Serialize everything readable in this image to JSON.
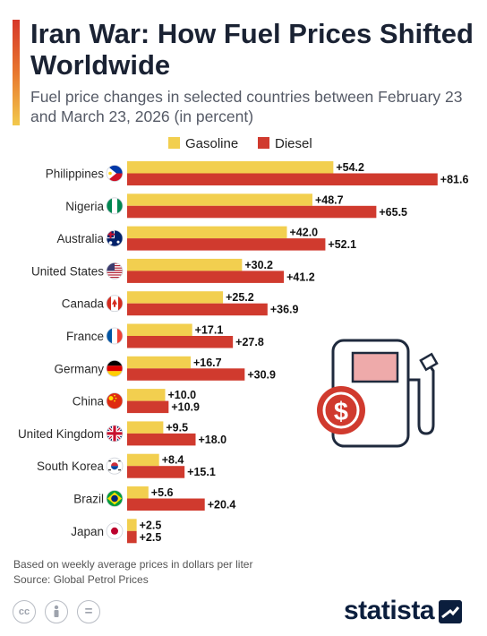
{
  "header": {
    "title": "Iran War: How Fuel Prices Shifted Worldwide",
    "subtitle": "Fuel price changes in selected countries between February 23 and March 23, 2026 (in percent)"
  },
  "colors": {
    "gasoline": "#f2cf4f",
    "diesel": "#d03a2e",
    "title": "#1a2233"
  },
  "chart_data": {
    "type": "bar",
    "orientation": "horizontal",
    "categories": [
      "Philippines",
      "Nigeria",
      "Australia",
      "United States",
      "Canada",
      "France",
      "Germany",
      "China",
      "United Kingdom",
      "South Korea",
      "Brazil",
      "Japan"
    ],
    "flag_icons": [
      "philippines-flag-icon",
      "nigeria-flag-icon",
      "australia-flag-icon",
      "united-states-flag-icon",
      "canada-flag-icon",
      "france-flag-icon",
      "germany-flag-icon",
      "china-flag-icon",
      "united-kingdom-flag-icon",
      "south-korea-flag-icon",
      "brazil-flag-icon",
      "japan-flag-icon"
    ],
    "series": [
      {
        "name": "Gasoline",
        "color": "#f2cf4f",
        "values": [
          54.2,
          48.7,
          42.0,
          30.2,
          25.2,
          17.1,
          16.7,
          10.0,
          9.5,
          8.4,
          5.6,
          2.5
        ]
      },
      {
        "name": "Diesel",
        "color": "#d03a2e",
        "values": [
          81.6,
          65.5,
          52.1,
          41.2,
          36.9,
          27.8,
          30.9,
          10.9,
          18.0,
          15.1,
          20.4,
          2.5
        ]
      }
    ],
    "data_labels": [
      [
        "+54.2",
        "+48.7",
        "+42.0",
        "+30.2",
        "+25.2",
        "+17.1",
        "+16.7",
        "+10.0",
        "+9.5",
        "+8.4",
        "+5.6",
        "+2.5"
      ],
      [
        "+81.6",
        "+65.5",
        "+52.1",
        "+41.2",
        "+36.9",
        "+27.8",
        "+30.9",
        "+10.9",
        "+18.0",
        "+15.1",
        "+20.4",
        "+2.5"
      ]
    ],
    "unit": "percent",
    "xlim": [
      0,
      100
    ],
    "grid": false,
    "legend": "top-center"
  },
  "notes": {
    "line1": "Based on weekly average prices in dollars per liter",
    "line2": "Source: Global Petrol Prices"
  },
  "brand": {
    "name": "statista"
  },
  "license_icons": [
    "cc-icon",
    "attribution-icon",
    "no-derivatives-icon"
  ],
  "license_labels": [
    "cc",
    "",
    "="
  ],
  "decoration": {
    "icon": "fuel-pump-dollar-icon",
    "symbol": "$"
  }
}
